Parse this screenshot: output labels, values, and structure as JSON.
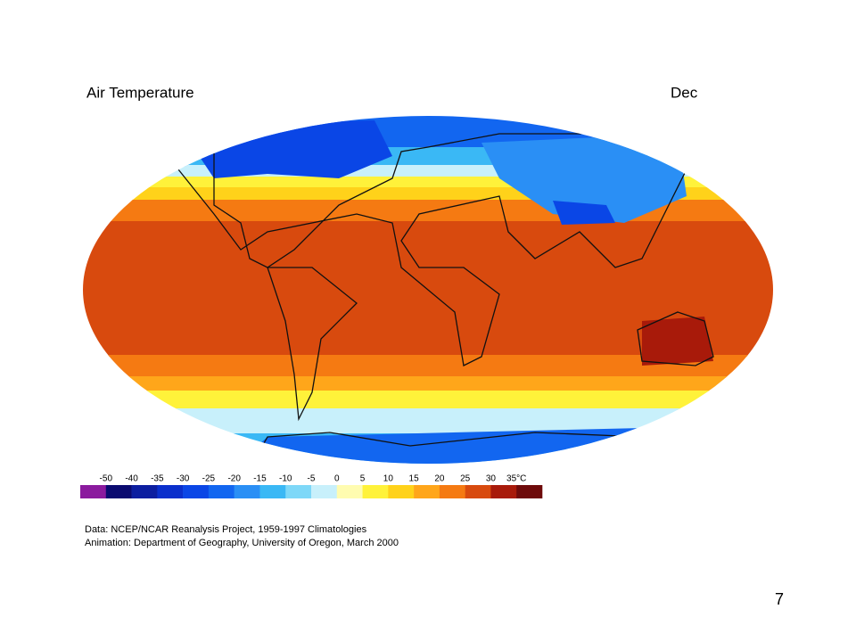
{
  "header": {
    "title": "Air Temperature",
    "month": "Dec"
  },
  "legend": {
    "labels": [
      "-50",
      "-40",
      "-35",
      "-30",
      "-25",
      "-20",
      "-15",
      "-10",
      "-5",
      "0",
      "5",
      "10",
      "15",
      "20",
      "25",
      "30",
      "35°C"
    ],
    "colors": [
      "#8b1a9e",
      "#0a0a70",
      "#0c1ea0",
      "#0a2fcc",
      "#0a46e6",
      "#1266f0",
      "#2a8ff5",
      "#3ab8f5",
      "#7ed8f8",
      "#c8f0fb",
      "#fffcb0",
      "#fff23a",
      "#ffd21a",
      "#ffa61a",
      "#f57a12",
      "#d84a0e",
      "#a81a0a",
      "#6e0a0a"
    ]
  },
  "credits": [
    "Data:  NCEP/NCAR Reanalysis Project, 1959-1997 Climatologies",
    "Animation:  Department of Geography, University of Oregon, March 2000"
  ],
  "page_number": "7"
}
